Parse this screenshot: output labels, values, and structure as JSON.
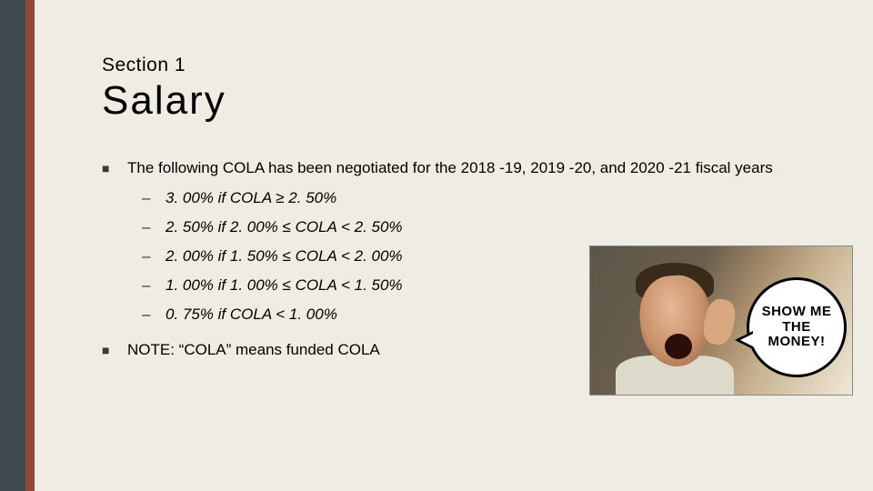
{
  "slide": {
    "background_color": "#efece3",
    "stripe_outer_color": "#3e4a50",
    "stripe_inner_color": "#8e4a3b",
    "section_label": "Section 1",
    "title": "Salary",
    "bullets": [
      {
        "text": "The following COLA has been negotiated for the 2018 -19, 2019 -20, and 2020 -21 fiscal years",
        "sub": [
          "3. 00% if COLA ≥ 2. 50%",
          "2. 50% if 2. 00% ≤ COLA < 2. 50%",
          "2. 00% if 1. 50% ≤ COLA < 2. 00%",
          "1. 00% if 1. 00% ≤ COLA < 1. 50%",
          "0. 75% if COLA < 1. 00%"
        ]
      },
      {
        "text": "NOTE:  “COLA” means funded COLA",
        "sub": []
      }
    ],
    "meme": {
      "speech_text": "SHOW ME THE MONEY!"
    },
    "typography": {
      "section_label_fontsize": 21,
      "title_fontsize": 44,
      "body_fontsize": 17,
      "font_family": "Arial"
    }
  }
}
